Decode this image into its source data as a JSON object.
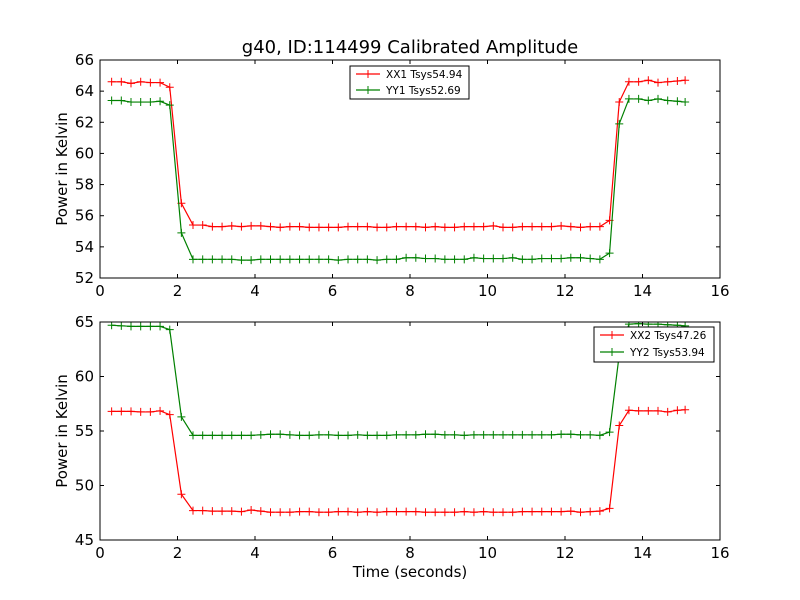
{
  "figure": {
    "title": "g40, ID:114499 Calibrated Amplitude"
  },
  "chart_data": [
    {
      "type": "line",
      "title": "g40, ID:114499 Calibrated Amplitude",
      "xlabel": "",
      "ylabel": "Power in Kelvin",
      "xlim": [
        0,
        16
      ],
      "ylim": [
        52,
        66
      ],
      "xticks": [
        "0",
        "2",
        "4",
        "6",
        "8",
        "10",
        "12",
        "14",
        "16"
      ],
      "yticks": [
        "52",
        "54",
        "56",
        "58",
        "60",
        "62",
        "64",
        "66"
      ],
      "grid": false,
      "legend_position": "top-center",
      "x": [
        0.3,
        0.55,
        0.8,
        1.05,
        1.3,
        1.55,
        1.8,
        2.1,
        2.4,
        2.65,
        2.9,
        3.15,
        3.4,
        3.65,
        3.9,
        4.15,
        4.4,
        4.65,
        4.9,
        5.15,
        5.4,
        5.65,
        5.9,
        6.15,
        6.4,
        6.65,
        6.9,
        7.15,
        7.4,
        7.65,
        7.9,
        8.15,
        8.4,
        8.65,
        8.9,
        9.15,
        9.4,
        9.65,
        9.9,
        10.15,
        10.4,
        10.65,
        10.9,
        11.15,
        11.4,
        11.65,
        11.9,
        12.15,
        12.4,
        12.65,
        12.9,
        13.15,
        13.4,
        13.65,
        13.9,
        14.15,
        14.4,
        14.65,
        14.9,
        15.1
      ],
      "series": [
        {
          "name": "XX1 Tsys54.94",
          "color": "#ff0000",
          "values": [
            64.6,
            64.6,
            64.5,
            64.6,
            64.55,
            64.55,
            64.25,
            56.8,
            55.4,
            55.4,
            55.3,
            55.3,
            55.35,
            55.3,
            55.35,
            55.35,
            55.3,
            55.25,
            55.3,
            55.3,
            55.25,
            55.25,
            55.25,
            55.25,
            55.3,
            55.3,
            55.3,
            55.25,
            55.25,
            55.3,
            55.3,
            55.3,
            55.25,
            55.3,
            55.25,
            55.25,
            55.3,
            55.3,
            55.3,
            55.35,
            55.25,
            55.25,
            55.3,
            55.3,
            55.3,
            55.3,
            55.35,
            55.3,
            55.25,
            55.3,
            55.3,
            55.7,
            63.3,
            64.6,
            64.6,
            64.7,
            64.55,
            64.6,
            64.65,
            64.7
          ]
        },
        {
          "name": "YY1 Tsys52.69",
          "color": "#008000",
          "values": [
            63.4,
            63.4,
            63.3,
            63.3,
            63.3,
            63.35,
            63.1,
            54.9,
            53.2,
            53.2,
            53.2,
            53.2,
            53.2,
            53.15,
            53.15,
            53.2,
            53.2,
            53.2,
            53.2,
            53.2,
            53.2,
            53.2,
            53.2,
            53.15,
            53.2,
            53.2,
            53.2,
            53.15,
            53.2,
            53.2,
            53.3,
            53.3,
            53.25,
            53.25,
            53.2,
            53.2,
            53.2,
            53.3,
            53.25,
            53.25,
            53.25,
            53.3,
            53.2,
            53.2,
            53.25,
            53.25,
            53.25,
            53.3,
            53.3,
            53.25,
            53.2,
            53.6,
            61.9,
            63.5,
            63.5,
            63.4,
            63.5,
            63.4,
            63.35,
            63.3
          ]
        }
      ]
    },
    {
      "type": "line",
      "title": "",
      "xlabel": "Time (seconds)",
      "ylabel": "Power in Kelvin",
      "xlim": [
        0,
        16
      ],
      "ylim": [
        45,
        65
      ],
      "xticks": [
        "0",
        "2",
        "4",
        "6",
        "8",
        "10",
        "12",
        "14",
        "16"
      ],
      "yticks": [
        "45",
        "50",
        "55",
        "60",
        "65"
      ],
      "grid": false,
      "legend_position": "top-right",
      "x": [
        0.3,
        0.55,
        0.8,
        1.05,
        1.3,
        1.55,
        1.8,
        2.1,
        2.4,
        2.65,
        2.9,
        3.15,
        3.4,
        3.65,
        3.9,
        4.15,
        4.4,
        4.65,
        4.9,
        5.15,
        5.4,
        5.65,
        5.9,
        6.15,
        6.4,
        6.65,
        6.9,
        7.15,
        7.4,
        7.65,
        7.9,
        8.15,
        8.4,
        8.65,
        8.9,
        9.15,
        9.4,
        9.65,
        9.9,
        10.15,
        10.4,
        10.65,
        10.9,
        11.15,
        11.4,
        11.65,
        11.9,
        12.15,
        12.4,
        12.65,
        12.9,
        13.15,
        13.4,
        13.65,
        13.9,
        14.15,
        14.4,
        14.65,
        14.9,
        15.1
      ],
      "series": [
        {
          "name": "XX2 Tsys47.26",
          "color": "#ff0000",
          "values": [
            56.8,
            56.8,
            56.8,
            56.75,
            56.75,
            56.85,
            56.5,
            49.2,
            47.7,
            47.7,
            47.65,
            47.65,
            47.65,
            47.6,
            47.75,
            47.65,
            47.55,
            47.55,
            47.55,
            47.6,
            47.6,
            47.55,
            47.55,
            47.6,
            47.6,
            47.55,
            47.6,
            47.55,
            47.6,
            47.6,
            47.6,
            47.6,
            47.55,
            47.55,
            47.55,
            47.55,
            47.6,
            47.55,
            47.6,
            47.55,
            47.55,
            47.55,
            47.6,
            47.6,
            47.6,
            47.6,
            47.6,
            47.65,
            47.55,
            47.6,
            47.65,
            47.9,
            55.5,
            56.9,
            56.85,
            56.85,
            56.85,
            56.75,
            56.9,
            56.95
          ]
        },
        {
          "name": "YY2 Tsys53.94",
          "color": "#008000",
          "values": [
            64.7,
            64.65,
            64.6,
            64.6,
            64.6,
            64.6,
            64.3,
            56.3,
            54.6,
            54.6,
            54.6,
            54.6,
            54.6,
            54.6,
            54.6,
            54.65,
            54.7,
            54.7,
            54.65,
            54.6,
            54.6,
            54.65,
            54.65,
            54.6,
            54.6,
            54.65,
            54.6,
            54.6,
            54.6,
            54.65,
            54.65,
            54.65,
            54.7,
            54.7,
            54.65,
            54.65,
            54.6,
            54.65,
            54.65,
            54.65,
            54.65,
            54.65,
            54.65,
            54.65,
            54.65,
            54.65,
            54.7,
            54.7,
            54.65,
            54.65,
            54.6,
            54.9,
            62.0,
            64.8,
            64.85,
            64.8,
            64.8,
            64.75,
            64.7,
            64.65
          ]
        }
      ]
    }
  ]
}
